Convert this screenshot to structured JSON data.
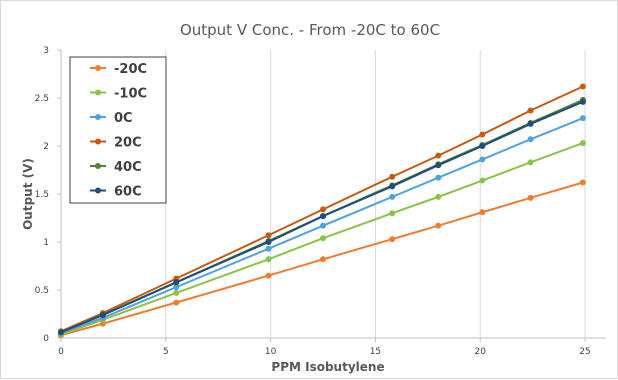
{
  "chart_data": {
    "type": "line",
    "title": "Output V Conc. - From -20C to 60C",
    "xlabel": "PPM Isobutylene",
    "ylabel": "Output (V)",
    "xlim": [
      0,
      26
    ],
    "ylim": [
      0,
      3
    ],
    "xticks": [
      0,
      5,
      10,
      15,
      20,
      25
    ],
    "yticks": [
      0,
      0.5,
      1,
      1.5,
      2,
      2.5,
      3
    ],
    "ytick_labels": [
      "0",
      "0.5",
      "1",
      "1.5",
      "2",
      "2.5",
      "3"
    ],
    "grid": "vertical",
    "legend_position": "top-left",
    "x": [
      0,
      2,
      5.5,
      9.9,
      12.5,
      15.8,
      18,
      20.1,
      22.4,
      24.9
    ],
    "series": [
      {
        "name": "-20C",
        "color": "#ED7D31",
        "values": [
          0.03,
          0.15,
          0.37,
          0.65,
          0.82,
          1.03,
          1.17,
          1.31,
          1.46,
          1.62
        ]
      },
      {
        "name": "-10C",
        "color": "#8BC34A",
        "values": [
          0.04,
          0.19,
          0.47,
          0.82,
          1.04,
          1.3,
          1.47,
          1.64,
          1.83,
          2.03
        ]
      },
      {
        "name": "0C",
        "color": "#4FA3DC",
        "values": [
          0.05,
          0.21,
          0.53,
          0.93,
          1.17,
          1.47,
          1.67,
          1.86,
          2.07,
          2.29
        ]
      },
      {
        "name": "20C",
        "color": "#C55A11",
        "values": [
          0.07,
          0.26,
          0.62,
          1.07,
          1.34,
          1.68,
          1.9,
          2.12,
          2.37,
          2.62
        ]
      },
      {
        "name": "40C",
        "color": "#548235",
        "values": [
          0.06,
          0.24,
          0.58,
          1.01,
          1.27,
          1.59,
          1.81,
          2.01,
          2.24,
          2.48
        ]
      },
      {
        "name": "60C",
        "color": "#1F4E79",
        "values": [
          0.06,
          0.24,
          0.58,
          1.0,
          1.27,
          1.58,
          1.8,
          2.0,
          2.23,
          2.46
        ]
      }
    ]
  }
}
